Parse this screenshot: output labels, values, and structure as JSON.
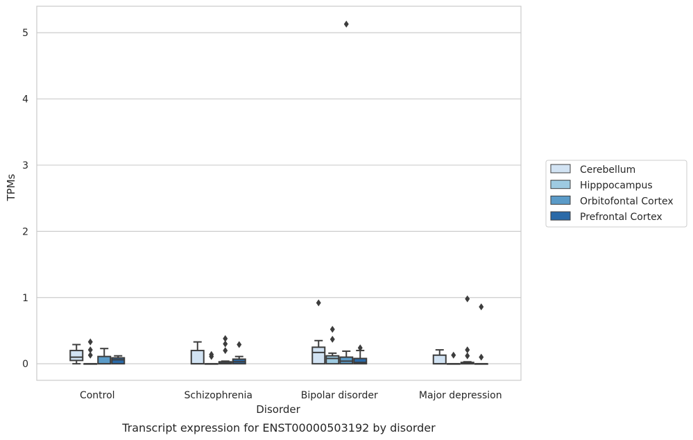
{
  "chart_data": {
    "type": "box",
    "caption": "Transcript expression for ENST00000503192 by disorder",
    "xlabel": "Disorder",
    "ylabel": "TPMs",
    "ylim": [
      -0.25,
      5.4
    ],
    "yticks": [
      0,
      1,
      2,
      3,
      4,
      5
    ],
    "grid": true,
    "legend_position": "right",
    "categories": [
      "Control",
      "Schizophrenia",
      "Bipolar disorder",
      "Major depression"
    ],
    "series": [
      {
        "name": "Cerebellum",
        "color": "#d2e3f3",
        "boxes": [
          {
            "whisker_low": 0.0,
            "q1": 0.05,
            "median": 0.1,
            "q3": 0.2,
            "whisker_high": 0.29,
            "outliers": []
          },
          {
            "whisker_low": 0.0,
            "q1": 0.0,
            "median": 0.0,
            "q3": 0.2,
            "whisker_high": 0.33,
            "outliers": []
          },
          {
            "whisker_low": 0.0,
            "q1": 0.0,
            "median": 0.17,
            "q3": 0.25,
            "whisker_high": 0.35,
            "outliers": [
              0.92
            ]
          },
          {
            "whisker_low": 0.0,
            "q1": 0.0,
            "median": 0.0,
            "q3": 0.13,
            "whisker_high": 0.21,
            "outliers": []
          }
        ]
      },
      {
        "name": "Hipppocampus",
        "color": "#9ecae1",
        "boxes": [
          {
            "whisker_low": 0.0,
            "q1": 0.0,
            "median": 0.0,
            "q3": 0.0,
            "whisker_high": 0.0,
            "outliers": [
              0.13,
              0.21,
              0.33
            ]
          },
          {
            "whisker_low": 0.0,
            "q1": 0.0,
            "median": 0.0,
            "q3": 0.0,
            "whisker_high": 0.0,
            "outliers": [
              0.11,
              0.14
            ]
          },
          {
            "whisker_low": 0.0,
            "q1": 0.0,
            "median": 0.08,
            "q3": 0.12,
            "whisker_high": 0.16,
            "outliers": [
              0.37,
              0.52
            ]
          },
          {
            "whisker_low": 0.0,
            "q1": 0.0,
            "median": 0.0,
            "q3": 0.0,
            "whisker_high": 0.0,
            "outliers": [
              0.13
            ]
          }
        ]
      },
      {
        "name": "Orbitofontal Cortex",
        "color": "#5b9bc8",
        "boxes": [
          {
            "whisker_low": 0.0,
            "q1": 0.0,
            "median": 0.0,
            "q3": 0.11,
            "whisker_high": 0.23,
            "outliers": []
          },
          {
            "whisker_low": 0.0,
            "q1": 0.0,
            "median": 0.01,
            "q3": 0.03,
            "whisker_high": 0.04,
            "outliers": [
              0.2,
              0.3,
              0.38
            ]
          },
          {
            "whisker_low": 0.0,
            "q1": 0.0,
            "median": 0.04,
            "q3": 0.1,
            "whisker_high": 0.19,
            "outliers": [
              5.13
            ]
          },
          {
            "whisker_low": 0.0,
            "q1": 0.0,
            "median": 0.0,
            "q3": 0.02,
            "whisker_high": 0.03,
            "outliers": [
              0.12,
              0.21,
              0.98
            ]
          }
        ]
      },
      {
        "name": "Prefrontal Cortex",
        "color": "#2a6aa8",
        "boxes": [
          {
            "whisker_low": 0.0,
            "q1": 0.0,
            "median": 0.06,
            "q3": 0.09,
            "whisker_high": 0.12,
            "outliers": []
          },
          {
            "whisker_low": 0.0,
            "q1": 0.0,
            "median": 0.03,
            "q3": 0.07,
            "whisker_high": 0.11,
            "outliers": [
              0.29
            ]
          },
          {
            "whisker_low": 0.0,
            "q1": 0.0,
            "median": 0.02,
            "q3": 0.08,
            "whisker_high": 0.2,
            "outliers": [
              0.24
            ]
          },
          {
            "whisker_low": 0.0,
            "q1": 0.0,
            "median": 0.0,
            "q3": 0.0,
            "whisker_high": 0.0,
            "outliers": [
              0.1,
              0.86
            ]
          }
        ]
      }
    ]
  }
}
